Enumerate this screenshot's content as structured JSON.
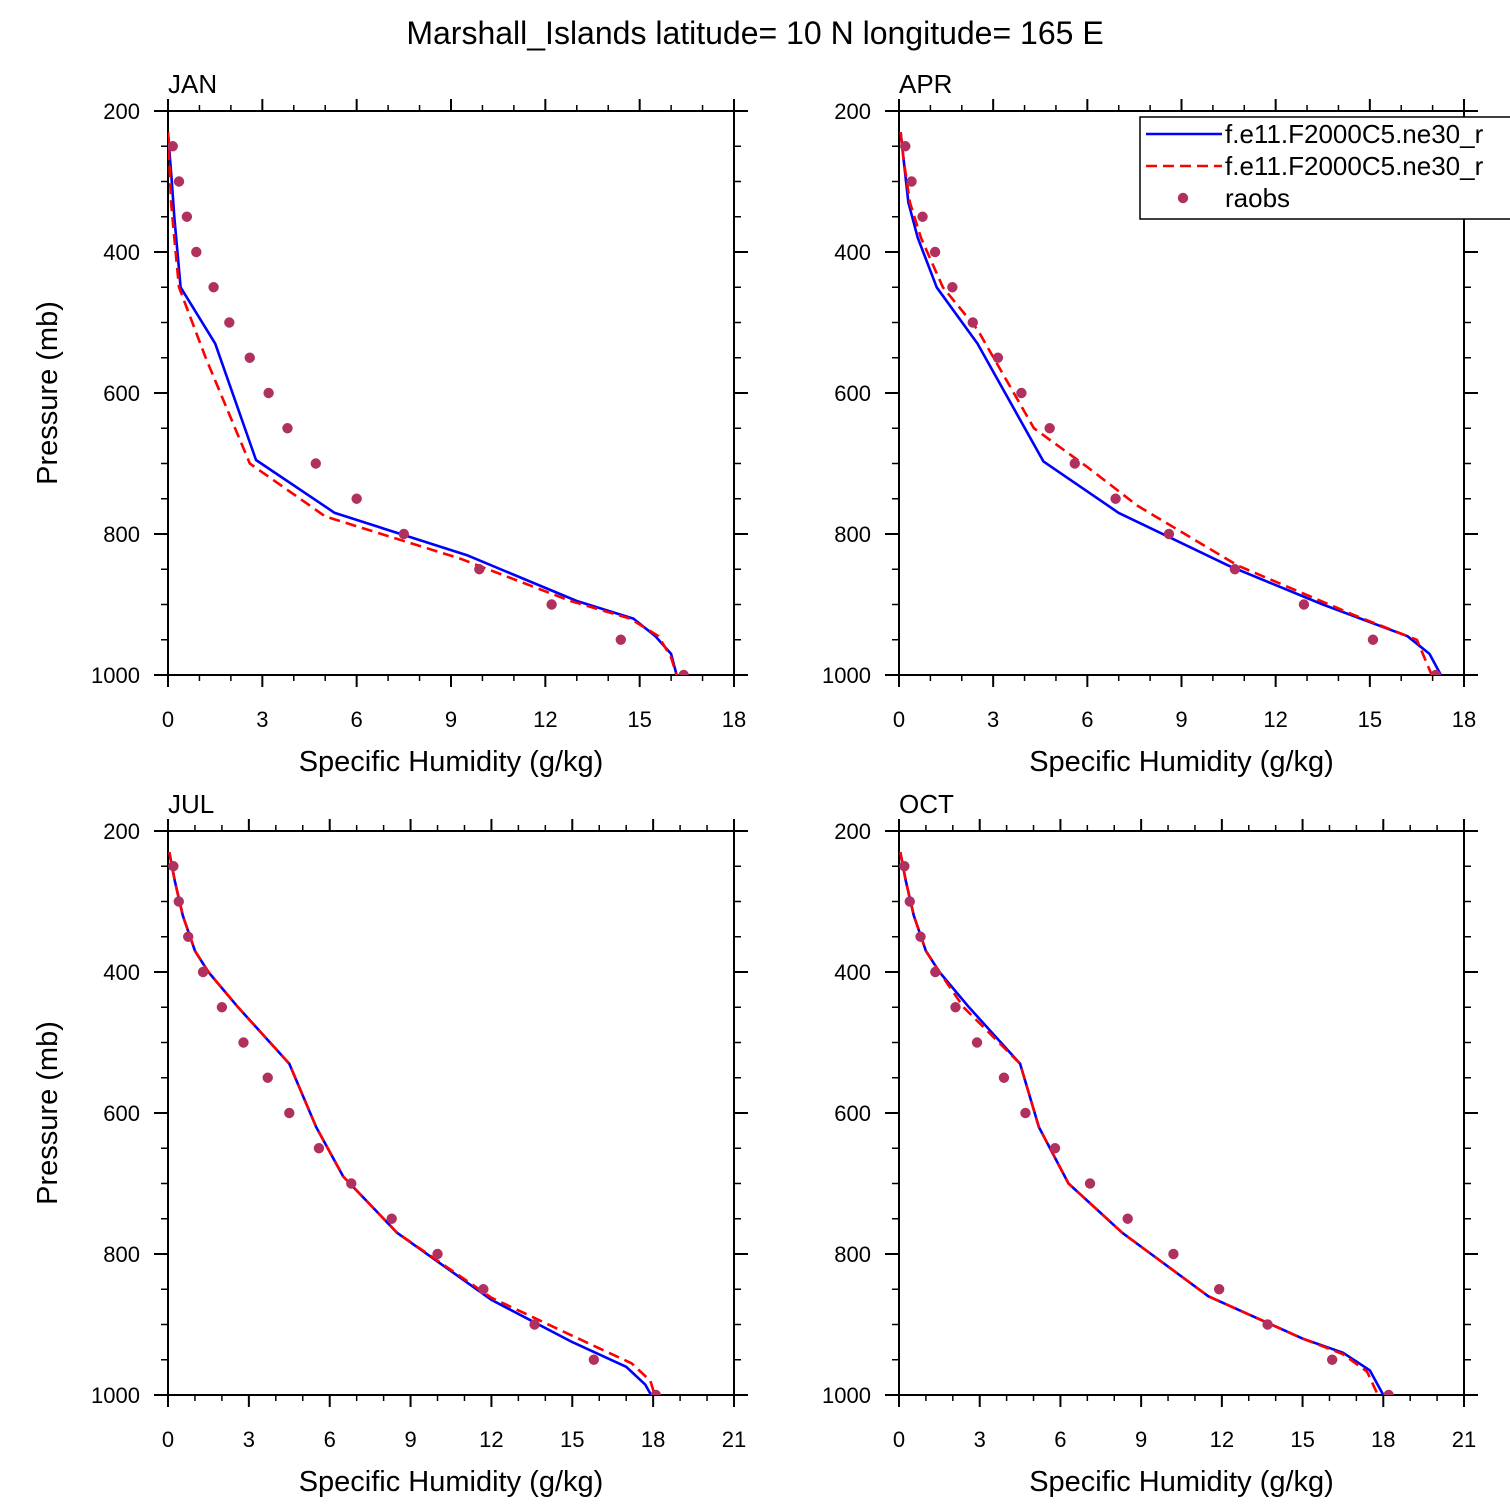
{
  "figure": {
    "title": "Marshall_Islands  latitude= 10 N longitude= 165 E"
  },
  "legend": {
    "placement": "top-right of APR panel",
    "entries": [
      {
        "label": "f.e11.F2000C5.ne30_r",
        "style": "solid",
        "color": "#0000ff"
      },
      {
        "label": "f.e11.F2000C5.ne30_r",
        "style": "dashed",
        "color": "#ff0000"
      },
      {
        "label": "raobs",
        "style": "marker",
        "color": "#b03060"
      }
    ]
  },
  "colors": {
    "model_solid": "#0000ff",
    "model_dashed": "#ff0000",
    "obs": "#b03060"
  },
  "chart_data": [
    {
      "type": "line",
      "panel_label": "JAN",
      "xlabel": "Specific Humidity (g/kg)",
      "ylabel": "Pressure (mb)",
      "xlim": [
        0,
        18
      ],
      "ylim": [
        200,
        1000
      ],
      "y_reversed": true,
      "xticks": [
        0,
        3,
        6,
        9,
        12,
        15,
        18
      ],
      "yticks": [
        200,
        400,
        600,
        800,
        1000
      ],
      "series": [
        {
          "style": "solid",
          "x": [
            0.0,
            0.05,
            0.12,
            0.2,
            0.4,
            1.5,
            2.8,
            5.3,
            9.5,
            13.0,
            14.8,
            15.5,
            16.0,
            16.2
          ],
          "y": [
            230,
            260,
            300,
            350,
            450,
            530,
            695,
            770,
            830,
            895,
            920,
            945,
            970,
            1004
          ]
        },
        {
          "style": "dashed",
          "x": [
            0.0,
            0.05,
            0.1,
            0.2,
            0.35,
            1.2,
            2.6,
            5.0,
            9.3,
            12.8,
            14.7,
            15.6,
            16.0,
            16.2
          ],
          "y": [
            230,
            280,
            330,
            380,
            450,
            550,
            700,
            775,
            835,
            895,
            920,
            945,
            975,
            1004
          ]
        },
        {
          "style": "marker",
          "x": [
            0.15,
            0.35,
            0.6,
            0.9,
            1.45,
            1.95,
            2.6,
            3.2,
            3.8,
            4.7,
            6.0,
            7.5,
            9.9,
            12.2,
            14.4,
            16.4
          ],
          "y": [
            250,
            300,
            350,
            400,
            450,
            500,
            550,
            600,
            650,
            700,
            750,
            800,
            850,
            900,
            950,
            1000
          ]
        }
      ]
    },
    {
      "type": "line",
      "panel_label": "APR",
      "xlabel": "Specific Humidity (g/kg)",
      "ylabel": "",
      "xlim": [
        0,
        18
      ],
      "ylim": [
        200,
        1000
      ],
      "y_reversed": true,
      "xticks": [
        0,
        3,
        6,
        9,
        12,
        15,
        18
      ],
      "yticks": [
        200,
        400,
        600,
        800,
        1000
      ],
      "series": [
        {
          "style": "solid",
          "x": [
            0.05,
            0.15,
            0.3,
            0.6,
            1.2,
            2.5,
            4.6,
            7.0,
            10.5,
            13.5,
            16.2,
            16.9,
            17.3
          ],
          "y": [
            230,
            270,
            330,
            380,
            450,
            530,
            697,
            770,
            845,
            900,
            945,
            970,
            1003
          ]
        },
        {
          "style": "dashed",
          "x": [
            0.05,
            0.15,
            0.35,
            0.7,
            1.4,
            2.5,
            4.3,
            6.0,
            7.6,
            10.8,
            14.5,
            16.5,
            17.0
          ],
          "y": [
            230,
            270,
            330,
            380,
            450,
            510,
            650,
            705,
            760,
            845,
            915,
            950,
            1003
          ]
        },
        {
          "style": "marker",
          "x": [
            0.2,
            0.4,
            0.75,
            1.15,
            1.7,
            2.35,
            3.15,
            3.9,
            4.8,
            5.6,
            6.9,
            8.6,
            10.7,
            12.9,
            15.1,
            17.1
          ],
          "y": [
            250,
            300,
            350,
            400,
            450,
            500,
            550,
            600,
            650,
            700,
            750,
            800,
            850,
            900,
            950,
            1000
          ]
        }
      ]
    },
    {
      "type": "line",
      "panel_label": "JUL",
      "xlabel": "Specific Humidity (g/kg)",
      "ylabel": "Pressure (mb)",
      "xlim": [
        0,
        21
      ],
      "ylim": [
        200,
        1000
      ],
      "y_reversed": true,
      "xticks": [
        0,
        3,
        6,
        9,
        12,
        15,
        18,
        21
      ],
      "yticks": [
        200,
        400,
        600,
        800,
        1000
      ],
      "series": [
        {
          "style": "solid",
          "x": [
            0.05,
            0.25,
            0.55,
            1.0,
            1.5,
            2.6,
            4.5,
            5.5,
            6.5,
            8.5,
            12.0,
            15.0,
            17.0,
            17.7,
            18.0
          ],
          "y": [
            230,
            270,
            320,
            370,
            400,
            450,
            530,
            620,
            690,
            770,
            865,
            925,
            960,
            985,
            1005
          ]
        },
        {
          "style": "dashed",
          "x": [
            0.05,
            0.25,
            0.55,
            1.0,
            1.5,
            2.6,
            4.5,
            5.5,
            6.5,
            8.5,
            12.0,
            15.5,
            17.2,
            17.9,
            18.1
          ],
          "y": [
            230,
            270,
            320,
            370,
            400,
            450,
            530,
            620,
            690,
            770,
            862,
            925,
            955,
            980,
            1005
          ]
        },
        {
          "style": "marker",
          "x": [
            0.2,
            0.4,
            0.75,
            1.3,
            2.0,
            2.8,
            3.7,
            4.5,
            5.6,
            6.8,
            8.3,
            10.0,
            11.7,
            13.6,
            15.8,
            18.1
          ],
          "y": [
            250,
            300,
            350,
            400,
            450,
            500,
            550,
            600,
            650,
            700,
            750,
            800,
            850,
            900,
            950,
            1000
          ]
        }
      ]
    },
    {
      "type": "line",
      "panel_label": "OCT",
      "xlabel": "Specific Humidity (g/kg)",
      "ylabel": "",
      "xlim": [
        0,
        21
      ],
      "ylim": [
        200,
        1000
      ],
      "y_reversed": true,
      "xticks": [
        0,
        3,
        6,
        9,
        12,
        15,
        18,
        21
      ],
      "yticks": [
        200,
        400,
        600,
        800,
        1000
      ],
      "series": [
        {
          "style": "solid",
          "x": [
            0.05,
            0.25,
            0.55,
            1.0,
            1.5,
            2.6,
            4.5,
            5.2,
            6.3,
            8.3,
            11.5,
            15.0,
            16.5,
            17.5,
            18.0
          ],
          "y": [
            230,
            270,
            320,
            370,
            400,
            450,
            530,
            620,
            700,
            770,
            860,
            920,
            940,
            965,
            1000
          ]
        },
        {
          "style": "dashed",
          "x": [
            0.05,
            0.25,
            0.55,
            1.0,
            1.5,
            2.4,
            4.5,
            5.2,
            6.3,
            8.3,
            11.5,
            15.0,
            16.5,
            17.4,
            17.8
          ],
          "y": [
            230,
            270,
            320,
            370,
            400,
            450,
            530,
            620,
            700,
            770,
            860,
            920,
            942,
            967,
            1000
          ]
        },
        {
          "style": "marker",
          "x": [
            0.2,
            0.4,
            0.8,
            1.35,
            2.1,
            2.9,
            3.9,
            4.7,
            5.8,
            7.1,
            8.5,
            10.2,
            11.9,
            13.7,
            16.1,
            18.2
          ],
          "y": [
            250,
            300,
            350,
            400,
            450,
            500,
            550,
            600,
            650,
            700,
            750,
            800,
            850,
            900,
            950,
            1000
          ]
        }
      ]
    }
  ]
}
